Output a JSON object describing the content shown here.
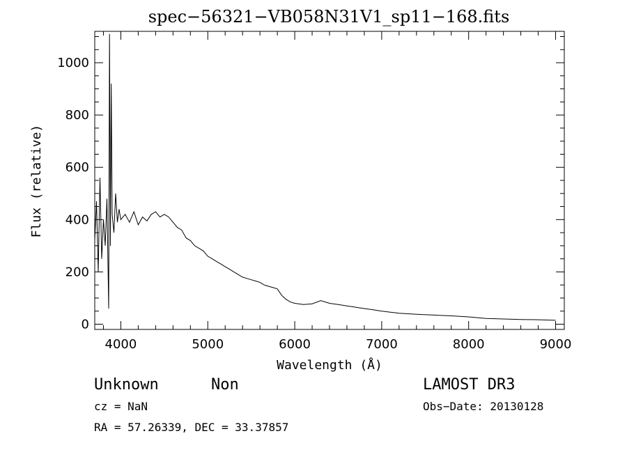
{
  "chart_data": {
    "type": "line",
    "title": "spec−56321−VB058N31V1_sp11−168.fits",
    "xlabel": "Wavelength (Å)",
    "ylabel": "Flux (relative)",
    "xlim": [
      3700,
      9100
    ],
    "ylim": [
      -20,
      1120
    ],
    "x_ticks": [
      4000,
      5000,
      6000,
      7000,
      8000,
      9000
    ],
    "y_ticks": [
      0,
      200,
      400,
      600,
      800,
      1000
    ],
    "x_tick_labels": [
      "4000",
      "5000",
      "6000",
      "7000",
      "8000",
      "9000"
    ],
    "y_tick_labels": [
      "0",
      "200",
      "400",
      "600",
      "800",
      "1000"
    ],
    "grid": false,
    "series": [
      {
        "x": [
          3700,
          3720,
          3740,
          3760,
          3780,
          3800,
          3820,
          3840,
          3860,
          3870,
          3880,
          3890,
          3900,
          3920,
          3940,
          3960,
          3980,
          4000,
          4050,
          4100,
          4150,
          4200,
          4250,
          4300,
          4350,
          4400,
          4450,
          4500,
          4550,
          4600,
          4650,
          4700,
          4750,
          4800,
          4850,
          4900,
          4950,
          5000,
          5050,
          5100,
          5150,
          5200,
          5250,
          5300,
          5350,
          5400,
          5450,
          5500,
          5550,
          5600,
          5650,
          5700,
          5750,
          5800,
          5850,
          5900,
          5950,
          6000,
          6100,
          6200,
          6300,
          6400,
          6500,
          6600,
          6700,
          6800,
          6900,
          7000,
          7200,
          7400,
          7600,
          7800,
          8000,
          8200,
          8400,
          8600,
          8800,
          9000
        ],
        "y": [
          320,
          470,
          200,
          560,
          250,
          400,
          300,
          480,
          60,
          1110,
          300,
          920,
          420,
          350,
          500,
          390,
          440,
          400,
          420,
          390,
          430,
          380,
          410,
          395,
          420,
          430,
          410,
          420,
          410,
          390,
          370,
          360,
          330,
          320,
          300,
          290,
          280,
          260,
          250,
          240,
          230,
          220,
          210,
          200,
          190,
          180,
          175,
          170,
          165,
          160,
          150,
          145,
          140,
          135,
          110,
          95,
          85,
          80,
          75,
          78,
          90,
          80,
          75,
          70,
          65,
          60,
          55,
          50,
          42,
          38,
          35,
          32,
          28,
          22,
          20,
          18,
          17,
          15
        ]
      }
    ]
  },
  "annotations": {
    "object_class": "Unknown",
    "object_subclass": "Non",
    "survey": "LAMOST DR3",
    "redshift": "cz = NaN",
    "obs_date": "Obs−Date: 20130128",
    "coords": "RA =  57.26339, DEC =  33.37857"
  }
}
